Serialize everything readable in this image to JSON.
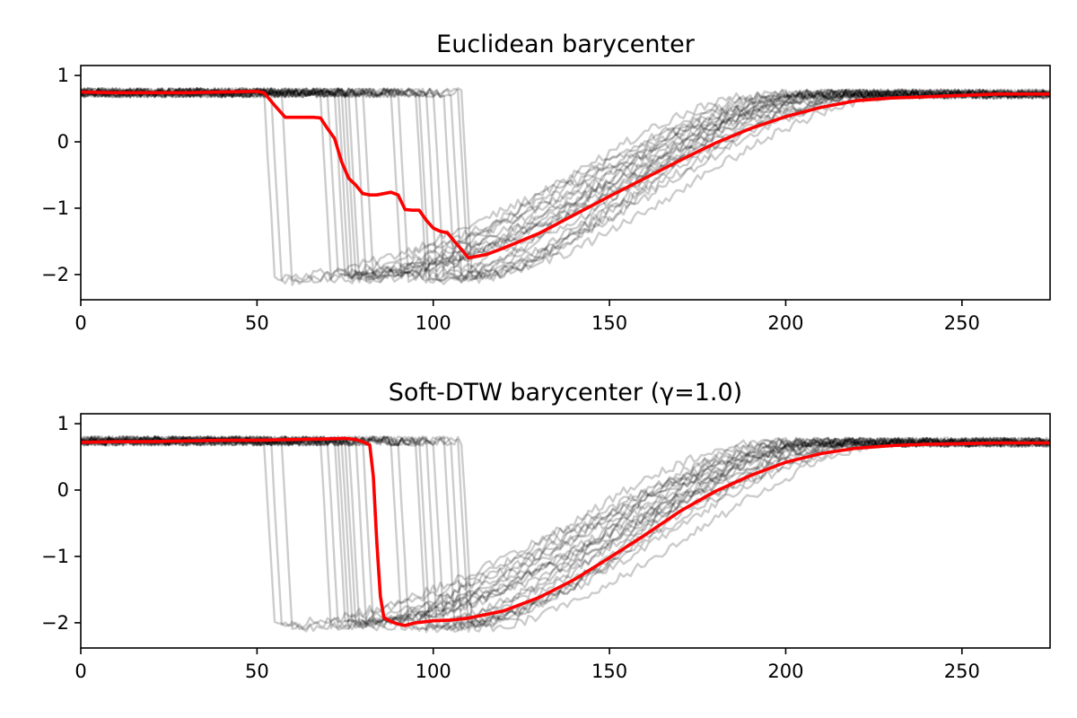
{
  "chart_data": [
    {
      "type": "line",
      "title": "Euclidean barycenter",
      "xlabel": "",
      "ylabel": "",
      "xlim": [
        0,
        275
      ],
      "ylim": [
        -2.38,
        1.15
      ],
      "xticks": [
        0,
        50,
        100,
        150,
        200,
        250
      ],
      "yticks": [
        1,
        0,
        -1,
        -2
      ],
      "xtick_labels": [
        "0",
        "50",
        "100",
        "150",
        "200",
        "250"
      ],
      "ytick_labels": [
        "1",
        "0",
        "−1",
        "−2"
      ],
      "grid": false,
      "legend": "none",
      "line_colors": {
        "series": "#000000",
        "barycenter": "#ff0000"
      },
      "series_drops": [
        52,
        54,
        57,
        68,
        70,
        72,
        73,
        74,
        75,
        76,
        78,
        80,
        88,
        90,
        95,
        96,
        98,
        100,
        103,
        105,
        107,
        108
      ],
      "series_bottom_approx": -2.05,
      "series_recovered_by": [
        215,
        225,
        235
      ],
      "barycenter": {
        "name": "Euclidean barycenter",
        "x": [
          0,
          10,
          20,
          30,
          40,
          50,
          52,
          55,
          58,
          62,
          66,
          68,
          70,
          72,
          74,
          76,
          78,
          80,
          82,
          84,
          86,
          88,
          90,
          92,
          94,
          96,
          98,
          100,
          102,
          104,
          106,
          108,
          110,
          115,
          120,
          130,
          140,
          150,
          160,
          170,
          180,
          190,
          200,
          210,
          220,
          230,
          240,
          250,
          260,
          275
        ],
        "y": [
          0.75,
          0.74,
          0.74,
          0.74,
          0.75,
          0.76,
          0.74,
          0.55,
          0.37,
          0.37,
          0.37,
          0.36,
          0.2,
          0.05,
          -0.3,
          -0.55,
          -0.65,
          -0.78,
          -0.8,
          -0.8,
          -0.78,
          -0.76,
          -0.8,
          -1.02,
          -1.03,
          -1.03,
          -1.18,
          -1.3,
          -1.35,
          -1.37,
          -1.5,
          -1.62,
          -1.75,
          -1.7,
          -1.6,
          -1.38,
          -1.1,
          -0.82,
          -0.55,
          -0.28,
          -0.02,
          0.2,
          0.38,
          0.52,
          0.62,
          0.66,
          0.68,
          0.7,
          0.72,
          0.72
        ]
      }
    },
    {
      "type": "line",
      "title": "Soft-DTW barycenter (γ=1.0)",
      "xlabel": "",
      "ylabel": "",
      "xlim": [
        0,
        275
      ],
      "ylim": [
        -2.38,
        1.15
      ],
      "xticks": [
        0,
        50,
        100,
        150,
        200,
        250
      ],
      "yticks": [
        1,
        0,
        -1,
        -2
      ],
      "xtick_labels": [
        "0",
        "50",
        "100",
        "150",
        "200",
        "250"
      ],
      "ytick_labels": [
        "1",
        "0",
        "−1",
        "−2"
      ],
      "grid": false,
      "legend": "none",
      "line_colors": {
        "series": "#000000",
        "barycenter": "#ff0000"
      },
      "series_drops": [
        52,
        54,
        57,
        68,
        70,
        72,
        73,
        74,
        75,
        76,
        78,
        80,
        88,
        90,
        95,
        96,
        98,
        100,
        103,
        105,
        107,
        108
      ],
      "series_bottom_approx": -2.05,
      "series_recovered_by": [
        215,
        225,
        235
      ],
      "barycenter": {
        "name": "Soft-DTW barycenter",
        "x": [
          0,
          10,
          20,
          30,
          40,
          50,
          60,
          70,
          75,
          78,
          80,
          82,
          83,
          84,
          85,
          86,
          88,
          90,
          92,
          95,
          100,
          105,
          110,
          120,
          130,
          140,
          150,
          160,
          170,
          180,
          190,
          200,
          210,
          220,
          230,
          240,
          250,
          260,
          275
        ],
        "y": [
          0.72,
          0.73,
          0.73,
          0.74,
          0.75,
          0.75,
          0.76,
          0.77,
          0.78,
          0.76,
          0.73,
          0.68,
          0.2,
          -0.8,
          -1.6,
          -1.92,
          -1.98,
          -2.02,
          -2.04,
          -2.0,
          -1.97,
          -1.96,
          -1.93,
          -1.82,
          -1.62,
          -1.35,
          -1.02,
          -0.68,
          -0.32,
          -0.02,
          0.22,
          0.42,
          0.55,
          0.63,
          0.67,
          0.69,
          0.7,
          0.71,
          0.71
        ]
      }
    }
  ]
}
